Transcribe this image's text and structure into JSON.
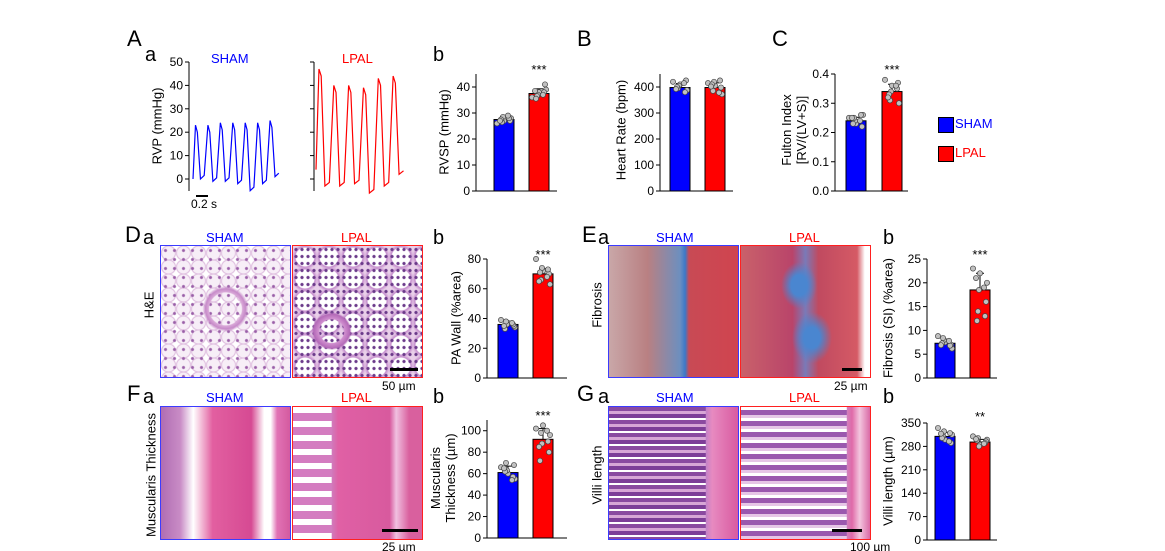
{
  "colors": {
    "sham": "#0000ff",
    "lpal": "#ff0000",
    "points": "#c0c0c0"
  },
  "labels": {
    "A": "A",
    "B": "B",
    "C": "C",
    "D": "D",
    "E": "E",
    "F": "F",
    "G": "G",
    "a": "a",
    "b": "b",
    "sham": "SHAM",
    "lpal": "LPAL",
    "rvp_ylabel": "RVP (mmHg)",
    "time_scale": "0.2 s",
    "he": "H&E",
    "fibrosis": "Fibrosis",
    "muscularis": "Muscularis Thickness",
    "villi": "Villi length",
    "scale_50": "50 µm",
    "scale_25": "25 µm",
    "scale_25b": "25 µm",
    "scale_100": "100 µm"
  },
  "legend": [
    {
      "label": "SHAM",
      "color": "#0000ff"
    },
    {
      "label": "LPAL",
      "color": "#ff0000"
    }
  ],
  "chart_data": [
    {
      "id": "rvp_trace",
      "type": "line",
      "ylabel": "RVP (mmHg)",
      "ylim": [
        -5,
        50
      ],
      "ticks": [
        "0",
        "10",
        "20",
        "30",
        "40",
        "50"
      ],
      "tickvals": [
        0,
        10,
        20,
        30,
        40,
        50
      ],
      "series": [
        {
          "name": "SHAM",
          "peaks": [
            23,
            23,
            24,
            24,
            24,
            24,
            25
          ],
          "troughs": [
            0,
            -1,
            -1,
            -2,
            -5,
            -2
          ]
        },
        {
          "name": "LPAL",
          "peaks": [
            47,
            40,
            40,
            39,
            43,
            44
          ],
          "troughs": [
            -3,
            -3,
            -2,
            -6,
            -3
          ]
        }
      ],
      "xscale": "0.2 s"
    },
    {
      "id": "rvsp",
      "type": "bar",
      "ylabel": "RVSP (mmHg)",
      "categories": [
        "SHAM",
        "LPAL"
      ],
      "values": [
        27.5,
        37.5
      ],
      "err": [
        1.2,
        1.8
      ],
      "ylim": [
        0,
        45
      ],
      "tickvals": [
        0,
        10,
        20,
        30,
        40
      ],
      "ticks": [
        "0",
        "10",
        "20",
        "30",
        "40"
      ],
      "sig": "***",
      "points": [
        [
          26,
          27,
          28,
          28.5,
          27,
          26.5,
          28,
          27.5,
          29,
          27
        ],
        [
          36,
          38,
          39,
          37,
          41,
          36.5,
          38,
          35.5,
          37,
          38.5
        ]
      ]
    },
    {
      "id": "heart_rate",
      "type": "bar",
      "ylabel": "Heart Rate (bpm)",
      "categories": [
        "SHAM",
        "LPAL"
      ],
      "values": [
        398,
        398
      ],
      "err": [
        15,
        18
      ],
      "ylim": [
        0,
        450
      ],
      "tickvals": [
        0,
        100,
        200,
        300,
        400
      ],
      "ticks": [
        "0",
        "100",
        "200",
        "300",
        "400"
      ],
      "sig": "",
      "points": [
        [
          420,
          410,
          388,
          405,
          425,
          395,
          380,
          400,
          415,
          392
        ],
        [
          415,
          405,
          372,
          420,
          398,
          385,
          425,
          410,
          378,
          402
        ]
      ]
    },
    {
      "id": "fulton",
      "type": "bar",
      "ylabel": "Fulton Index\n[RV/(LV+S)]",
      "categories": [
        "SHAM",
        "LPAL"
      ],
      "values": [
        0.24,
        0.34
      ],
      "err": [
        0.012,
        0.025
      ],
      "ylim": [
        0,
        0.4
      ],
      "tickvals": [
        0,
        0.1,
        0.2,
        0.3,
        0.4
      ],
      "ticks": [
        "0.0",
        "0.1",
        "0.2",
        "0.3",
        "0.4"
      ],
      "sig": "***",
      "points": [
        [
          0.25,
          0.23,
          0.26,
          0.24,
          0.22,
          0.25,
          0.26,
          0.23,
          0.24,
          0.25
        ],
        [
          0.38,
          0.36,
          0.3,
          0.34,
          0.37,
          0.31,
          0.35,
          0.33,
          0.36,
          0.32
        ]
      ]
    },
    {
      "id": "pa_wall",
      "type": "bar",
      "ylabel": "PA Wall (%area)",
      "categories": [
        "SHAM",
        "LPAL"
      ],
      "values": [
        36,
        70
      ],
      "err": [
        2,
        3.5
      ],
      "ylim": [
        0,
        80
      ],
      "tickvals": [
        0,
        20,
        40,
        60,
        80
      ],
      "ticks": [
        "0",
        "20",
        "40",
        "60",
        "80"
      ],
      "sig": "***",
      "points": [
        [
          39,
          37,
          34,
          36,
          35,
          38,
          36,
          33,
          37,
          35
        ],
        [
          80,
          72,
          63,
          74,
          70,
          66,
          73,
          71,
          68,
          65
        ]
      ]
    },
    {
      "id": "fibrosis",
      "type": "bar",
      "ylabel": "Fibrosis (SI) (%area)",
      "categories": [
        "SHAM",
        "LPAL"
      ],
      "values": [
        7.3,
        18.5
      ],
      "err": [
        0.8,
        3.5
      ],
      "ylim": [
        0,
        25
      ],
      "tickvals": [
        0,
        5,
        10,
        15,
        20,
        25
      ],
      "ticks": [
        "0",
        "5",
        "10",
        "15",
        "20",
        "25"
      ],
      "sig": "***",
      "points": [
        [
          8.8,
          7.5,
          6.2,
          8,
          7,
          8.4,
          6.8,
          7.3,
          7.8,
          6.9
        ],
        [
          23,
          22,
          20,
          18.5,
          16,
          14,
          13,
          12,
          19,
          21
        ]
      ]
    },
    {
      "id": "muscularis",
      "type": "bar",
      "ylabel": "Muscularis\nThickness (µm)",
      "categories": [
        "SHAM",
        "LPAL"
      ],
      "values": [
        61,
        92
      ],
      "err": [
        6,
        10
      ],
      "ylim": [
        0,
        110
      ],
      "tickvals": [
        0,
        20,
        40,
        60,
        80,
        100
      ],
      "ticks": [
        "0",
        "20",
        "40",
        "60",
        "80",
        "100"
      ],
      "sig": "***",
      "points": [
        [
          66,
          60,
          55,
          63,
          68,
          70,
          57,
          62,
          54,
          65
        ],
        [
          102,
          105,
          96,
          88,
          80,
          98,
          90,
          72,
          100,
          85
        ]
      ]
    },
    {
      "id": "villi",
      "type": "bar",
      "ylabel": "Villi length (µm)",
      "categories": [
        "SHAM",
        "LPAL"
      ],
      "values": [
        310,
        293
      ],
      "err": [
        12,
        8
      ],
      "ylim": [
        0,
        350
      ],
      "tickvals": [
        0,
        70,
        140,
        210,
        280,
        350
      ],
      "ticks": [
        "0",
        "70",
        "140",
        "210",
        "280",
        "350"
      ],
      "sig": "**",
      "points": [
        [
          335,
          300,
          315,
          325,
          290,
          310,
          320,
          305,
          295,
          318
        ],
        [
          310,
          285,
          300,
          280,
          295,
          305,
          290,
          298,
          288,
          302
        ]
      ]
    }
  ]
}
